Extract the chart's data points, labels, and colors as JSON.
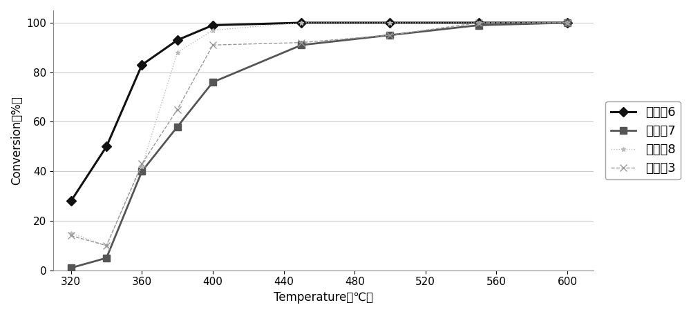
{
  "series": [
    {
      "label": "实施兦6",
      "x": [
        320,
        340,
        360,
        380,
        400,
        450,
        500,
        550,
        600
      ],
      "y": [
        28,
        50,
        83,
        93,
        99,
        100,
        100,
        100,
        100
      ],
      "color": "#111111",
      "linewidth": 2.2,
      "marker": "D",
      "markersize": 7,
      "markerfacecolor": "#111111",
      "markeredgecolor": "#111111",
      "linestyle": "-"
    },
    {
      "label": "实施兦7",
      "x": [
        320,
        340,
        360,
        380,
        400,
        450,
        500,
        550,
        600
      ],
      "y": [
        1,
        5,
        40,
        58,
        76,
        91,
        95,
        99,
        100
      ],
      "color": "#555555",
      "linewidth": 2.0,
      "marker": "s",
      "markersize": 7,
      "markerfacecolor": "#555555",
      "markeredgecolor": "#555555",
      "linestyle": "-"
    },
    {
      "label": "实施兦8",
      "x": [
        320,
        340,
        360,
        380,
        400,
        450,
        500,
        550,
        600
      ],
      "y": [
        15,
        10,
        42,
        88,
        97,
        100,
        100,
        100,
        100
      ],
      "color": "#bbbbbb",
      "linewidth": 1.0,
      "marker": "*",
      "markersize": 5,
      "markerfacecolor": "#bbbbbb",
      "markeredgecolor": "#bbbbbb",
      "linestyle": ":"
    },
    {
      "label": "实施兦3",
      "x": [
        320,
        340,
        360,
        380,
        400,
        450,
        500,
        550,
        600
      ],
      "y": [
        14,
        10,
        43,
        65,
        91,
        92,
        95,
        100,
        100
      ],
      "color": "#999999",
      "linewidth": 1.0,
      "marker": "x",
      "markersize": 7,
      "markerfacecolor": "#999999",
      "markeredgecolor": "#999999",
      "linestyle": "--"
    }
  ],
  "xlabel": "Temperature（℃）",
  "ylabel": "Conversion（%）",
  "xlim": [
    310,
    615
  ],
  "ylim": [
    0,
    105
  ],
  "xticks": [
    320,
    360,
    400,
    440,
    480,
    520,
    560,
    600
  ],
  "yticks": [
    0,
    20,
    40,
    60,
    80,
    100
  ],
  "grid": true,
  "grid_color": "#cccccc",
  "background_color": "#ffffff",
  "legend_fontsize": 13,
  "axis_fontsize": 12,
  "tick_fontsize": 11
}
